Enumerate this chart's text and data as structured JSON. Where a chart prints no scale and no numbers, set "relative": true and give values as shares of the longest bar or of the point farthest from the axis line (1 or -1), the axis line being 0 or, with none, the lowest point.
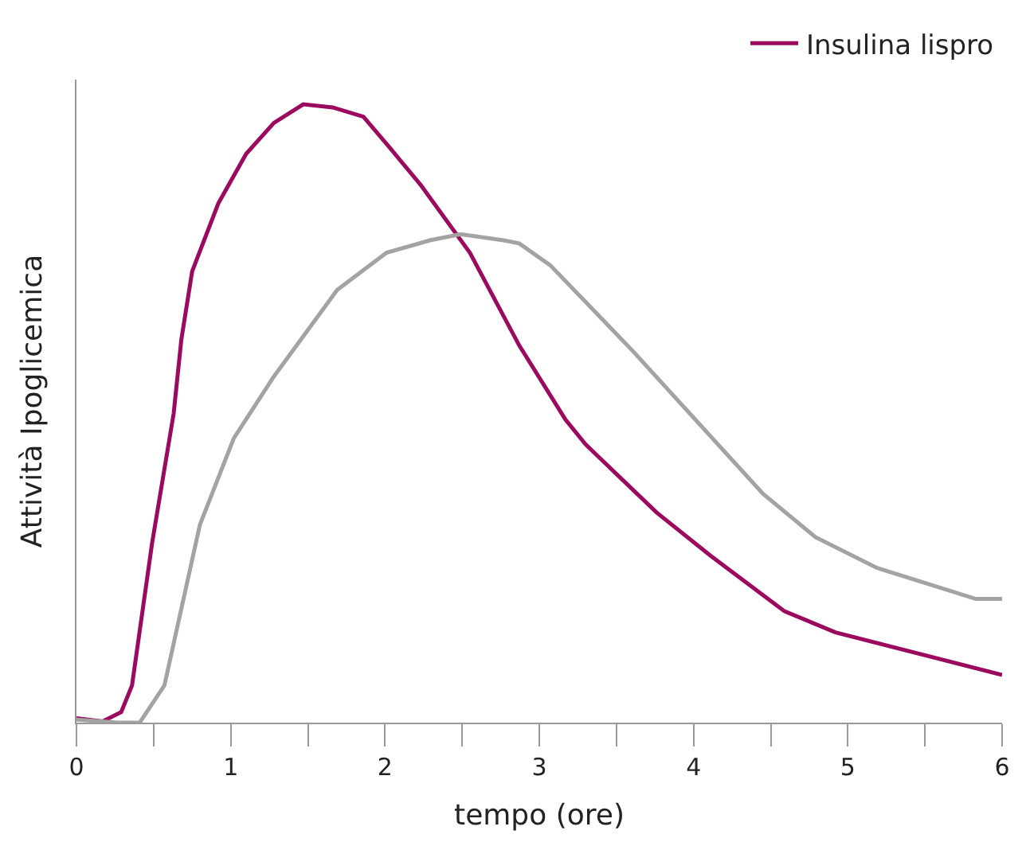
{
  "chart_data": {
    "type": "line",
    "relative": true,
    "xlabel": "tempo (ore)",
    "ylabel": "Attività Ipoglicemica",
    "xlim": [
      0,
      6
    ],
    "xticks": [
      0,
      {
        "value": 0.5,
        "label": null
      },
      1,
      {
        "value": 1.5,
        "label": null
      },
      2,
      {
        "value": 2.5,
        "label": null
      },
      3,
      {
        "value": 3.5,
        "label": null
      },
      4,
      {
        "value": 4.5,
        "label": null
      },
      5,
      {
        "value": 5.5,
        "label": null
      },
      6
    ],
    "legend": "top right",
    "marker": "none",
    "line_style": "solid",
    "series": [
      {
        "name": "Insulina lispro",
        "color": "#9b0a5e",
        "x": [
          0,
          0.17,
          0.29,
          0.36,
          0.49,
          0.63,
          0.68,
          0.75,
          0.92,
          1.1,
          1.28,
          1.47,
          1.66,
          1.86,
          2.03,
          2.23,
          2.55,
          2.87,
          3.17,
          3.3,
          3.76,
          4.11,
          4.59,
          4.92,
          6
        ],
        "values": [
          0.007,
          0.002,
          0.017,
          0.06,
          0.29,
          0.5,
          0.62,
          0.73,
          0.84,
          0.92,
          0.97,
          1.0,
          0.995,
          0.98,
          0.93,
          0.87,
          0.76,
          0.61,
          0.49,
          0.45,
          0.34,
          0.27,
          0.18,
          0.146,
          0.077
        ]
      },
      {
        "color": "#a3a3a3",
        "x": [
          0,
          0.27,
          0.41,
          0.57,
          0.8,
          1.02,
          1.28,
          1.69,
          2.01,
          2.29,
          2.49,
          2.77,
          2.87,
          3.07,
          3.61,
          4.45,
          4.79,
          5.19,
          5.83,
          6
        ],
        "values": [
          0.005,
          0,
          0,
          0.06,
          0.32,
          0.46,
          0.56,
          0.7,
          0.76,
          0.78,
          0.79,
          0.78,
          0.775,
          0.74,
          0.6,
          0.37,
          0.3,
          0.25,
          0.2,
          0.2
        ]
      }
    ]
  }
}
